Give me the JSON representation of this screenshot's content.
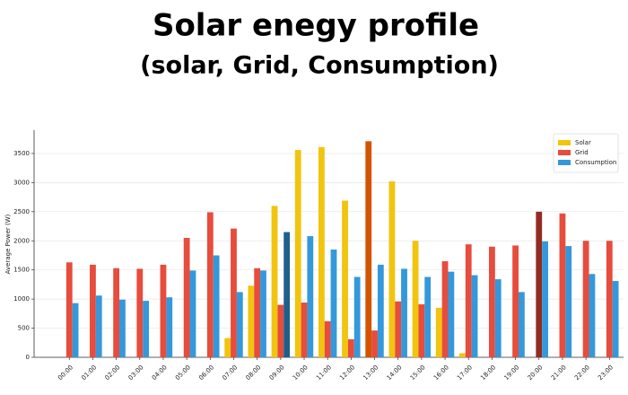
{
  "chart_data": {
    "type": "bar",
    "title": "Solar enegy profile",
    "subtitle": "(solar, Grid, Consumption)",
    "y_label": "Average Power (W)",
    "categories": [
      "00:00",
      "01:00",
      "02:00",
      "03:00",
      "04:00",
      "05:00",
      "06:00",
      "07:00",
      "08:00",
      "09:00",
      "10:00",
      "11:00",
      "12:00",
      "13:00",
      "14:00",
      "15:00",
      "16:00",
      "17:00",
      "18:00",
      "19:00",
      "20:00",
      "21:00",
      "22:00",
      "23:00"
    ],
    "series": [
      {
        "name": "Solar",
        "color": "#f1c40f",
        "values": [
          0,
          0,
          0,
          0,
          0,
          0,
          0,
          330,
          1230,
          2600,
          3560,
          3610,
          2690,
          3710,
          3020,
          2000,
          850,
          70,
          0,
          0,
          0,
          0,
          0,
          0
        ],
        "point_colors": [
          {
            "index": 13,
            "color": "#d35400"
          }
        ]
      },
      {
        "name": "Grid",
        "color": "#e74c3c",
        "values": [
          1630,
          1590,
          1530,
          1520,
          1590,
          2050,
          2490,
          2210,
          1530,
          900,
          940,
          620,
          310,
          460,
          960,
          910,
          1650,
          1940,
          1900,
          1920,
          2500,
          2470,
          2000,
          2000
        ],
        "point_colors": [
          {
            "index": 20,
            "color": "#922b21"
          }
        ]
      },
      {
        "name": "Consumption",
        "color": "#3498db",
        "values": [
          930,
          1060,
          990,
          970,
          1030,
          1490,
          1750,
          1120,
          1490,
          2150,
          2080,
          1850,
          1380,
          1590,
          1520,
          1380,
          1470,
          1410,
          1340,
          1120,
          1990,
          1910,
          1430,
          1310
        ],
        "point_colors": [
          {
            "index": 9,
            "color": "#1f5f8b"
          }
        ]
      }
    ],
    "ylim": [
      0,
      3900
    ],
    "yticks": [
      0,
      500,
      1000,
      1500,
      2000,
      2500,
      3000,
      3500
    ],
    "grid": true,
    "legend": "upper right"
  }
}
